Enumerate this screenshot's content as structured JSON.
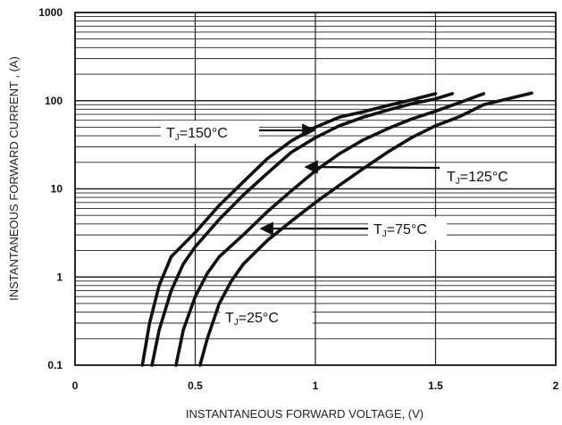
{
  "chart_data": {
    "type": "line",
    "xlabel": "INSTANTANEOUS FORWARD VOLTAGE,  (V)",
    "ylabel": "INSTANTANEOUS FORWARD CURRENT , (A)",
    "xlim": [
      0,
      2
    ],
    "ylim": [
      0.1,
      1000
    ],
    "yscale": "log",
    "grid": true,
    "x_ticks": [
      "0",
      "0.5",
      "1",
      "1.5",
      "2"
    ],
    "y_ticks": [
      "0.1",
      "1",
      "10",
      "100",
      "1000"
    ],
    "series": [
      {
        "name": "TJ=150°C",
        "points": [
          [
            0.28,
            0.1
          ],
          [
            0.31,
            0.3
          ],
          [
            0.35,
            0.8
          ],
          [
            0.4,
            1.7
          ],
          [
            0.5,
            3.2
          ],
          [
            0.6,
            6.5
          ],
          [
            0.7,
            12
          ],
          [
            0.8,
            22
          ],
          [
            0.9,
            35
          ],
          [
            1.0,
            50
          ],
          [
            1.1,
            65
          ],
          [
            1.2,
            75
          ],
          [
            1.3,
            88
          ],
          [
            1.4,
            102
          ],
          [
            1.5,
            120
          ]
        ]
      },
      {
        "name": "TJ=125°C",
        "points": [
          [
            0.32,
            0.1
          ],
          [
            0.35,
            0.25
          ],
          [
            0.4,
            0.7
          ],
          [
            0.45,
            1.4
          ],
          [
            0.5,
            2.2
          ],
          [
            0.6,
            4.5
          ],
          [
            0.7,
            8.5
          ],
          [
            0.8,
            15
          ],
          [
            0.9,
            26
          ],
          [
            1.0,
            38
          ],
          [
            1.1,
            52
          ],
          [
            1.2,
            65
          ],
          [
            1.3,
            78
          ],
          [
            1.4,
            92
          ],
          [
            1.5,
            105
          ],
          [
            1.57,
            120
          ]
        ]
      },
      {
        "name": "TJ=75°C",
        "points": [
          [
            0.42,
            0.1
          ],
          [
            0.45,
            0.25
          ],
          [
            0.5,
            0.6
          ],
          [
            0.55,
            1.1
          ],
          [
            0.6,
            1.7
          ],
          [
            0.7,
            3.0
          ],
          [
            0.8,
            5.5
          ],
          [
            0.9,
            9.5
          ],
          [
            1.0,
            16
          ],
          [
            1.1,
            25
          ],
          [
            1.2,
            36
          ],
          [
            1.3,
            48
          ],
          [
            1.4,
            62
          ],
          [
            1.5,
            76
          ],
          [
            1.6,
            95
          ],
          [
            1.7,
            120
          ]
        ]
      },
      {
        "name": "TJ=25°C",
        "points": [
          [
            0.52,
            0.1
          ],
          [
            0.55,
            0.2
          ],
          [
            0.6,
            0.5
          ],
          [
            0.65,
            0.9
          ],
          [
            0.7,
            1.4
          ],
          [
            0.8,
            2.6
          ],
          [
            0.9,
            4.3
          ],
          [
            1.0,
            7
          ],
          [
            1.1,
            11
          ],
          [
            1.2,
            17
          ],
          [
            1.3,
            26
          ],
          [
            1.4,
            38
          ],
          [
            1.5,
            52
          ],
          [
            1.6,
            66
          ],
          [
            1.7,
            90
          ],
          [
            1.8,
            105
          ],
          [
            1.9,
            122
          ]
        ]
      }
    ],
    "annotations": [
      {
        "main": "T",
        "sub": "J",
        "rest": "=150°C",
        "arrow_to": [
          1.0,
          42
        ]
      },
      {
        "main": "T",
        "sub": "J",
        "rest": "=125°C",
        "arrow_to": [
          0.95,
          20
        ]
      },
      {
        "main": "T",
        "sub": "J",
        "rest": "=75°C",
        "arrow_to": [
          0.78,
          3.3
        ]
      },
      {
        "main": "T",
        "sub": "J",
        "rest": "=25°C"
      }
    ]
  }
}
